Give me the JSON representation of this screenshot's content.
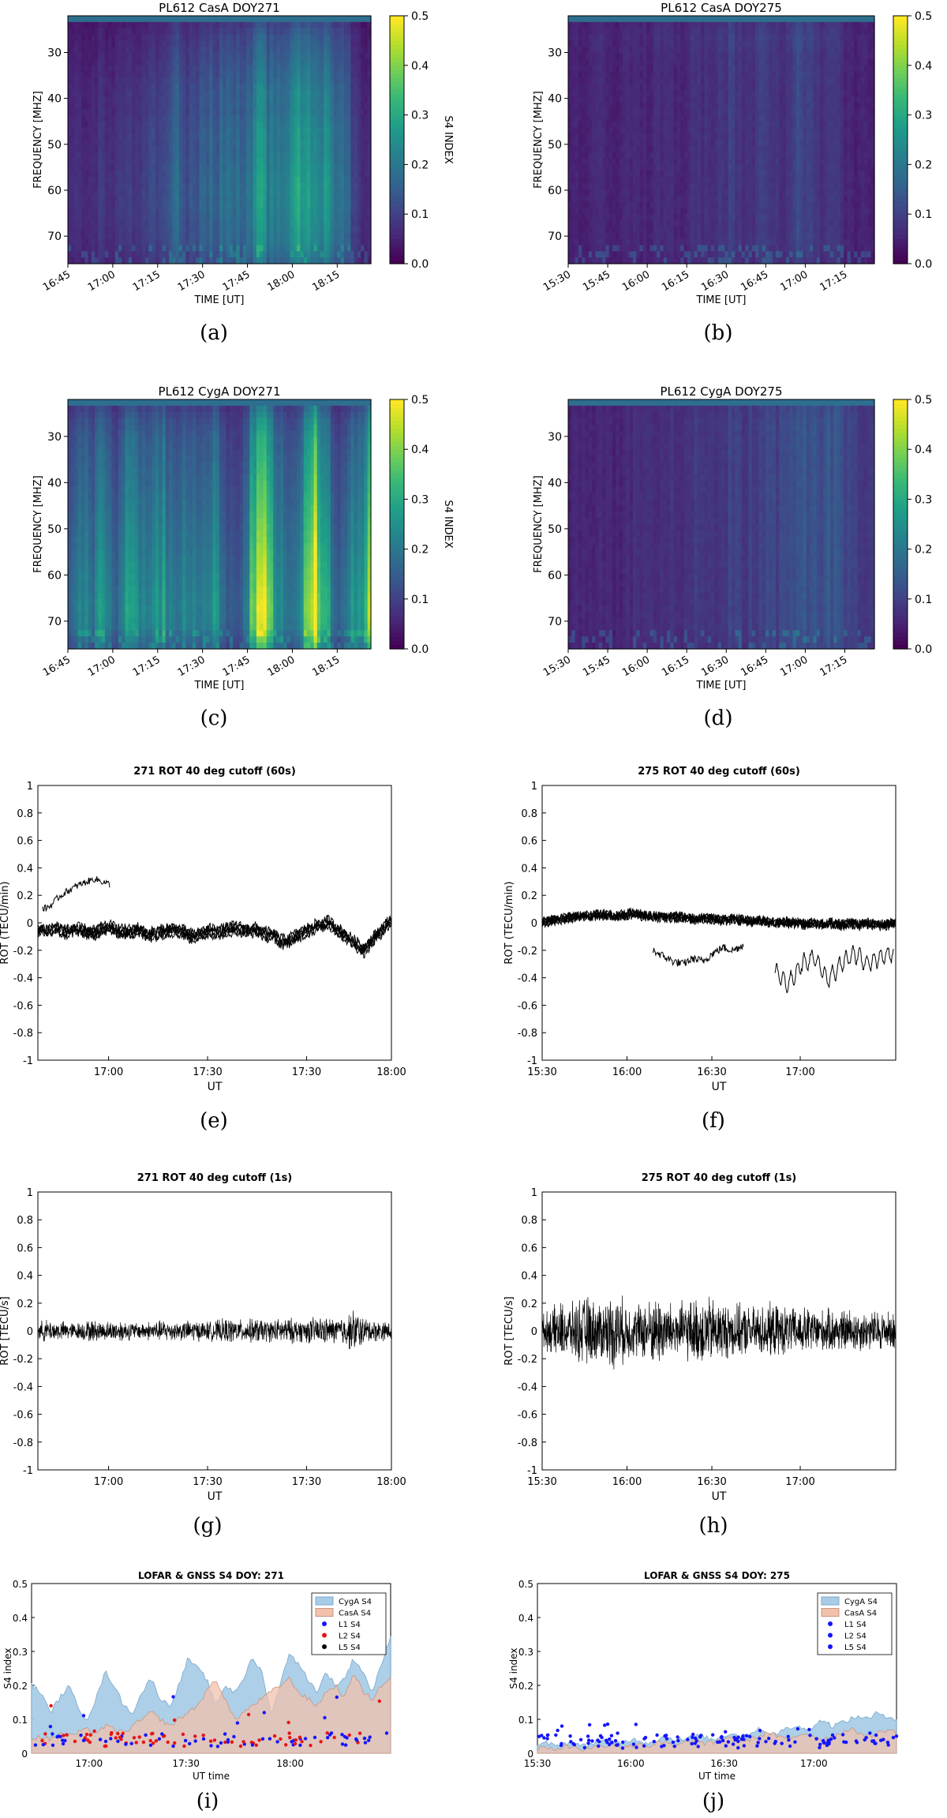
{
  "chart_data": [
    {
      "id": "a",
      "type": "heatmap",
      "title": "PL612 CasA DOY271",
      "xlabel": "TIME [UT]",
      "ylabel": "FREQUENCY [MHZ]",
      "colorbar_label": "S4 INDEX",
      "colorbar_ticks": [
        "0.0",
        "0.1",
        "0.2",
        "0.3",
        "0.4",
        "0.5"
      ],
      "x_ticks": [
        "16:45",
        "17:00",
        "17:15",
        "17:30",
        "17:45",
        "18:00",
        "18:15"
      ],
      "y_ticks": [
        "30",
        "40",
        "50",
        "60",
        "70"
      ],
      "ylim": [
        22,
        76
      ],
      "clim": [
        0,
        0.5
      ],
      "caption": "(a)",
      "time_profile": [
        0.05,
        0.06,
        0.05,
        0.06,
        0.07,
        0.05,
        0.06,
        0.07,
        0.08,
        0.06,
        0.09,
        0.1,
        0.08,
        0.12,
        0.14,
        0.1,
        0.11,
        0.13,
        0.15,
        0.12,
        0.16,
        0.18,
        0.14,
        0.13,
        0.2,
        0.22,
        0.18,
        0.16,
        0.2,
        0.24,
        0.27,
        0.22,
        0.2,
        0.23,
        0.19,
        0.17,
        0.15,
        0.08,
        0.06,
        0.05
      ],
      "freq_profile": [
        0.5,
        0.7,
        0.8,
        0.9,
        1.0,
        1.0,
        1.1,
        1.1,
        1.15,
        1.2,
        1.2,
        1.15,
        1.1,
        0.9
      ],
      "colormap": [
        "#440154",
        "#482878",
        "#3e4989",
        "#31688e",
        "#26828e",
        "#1f9e89",
        "#35b779",
        "#6ece58",
        "#b5de2b",
        "#fde725"
      ]
    },
    {
      "id": "b",
      "type": "heatmap",
      "title": "PL612 CasA DOY275",
      "xlabel": "TIME [UT]",
      "ylabel": "FREQUENCY [MHZ]",
      "colorbar_label": "S4 INDEX",
      "colorbar_ticks": [
        "0.0",
        "0.1",
        "0.2",
        "0.3",
        "0.4",
        "0.5"
      ],
      "x_ticks": [
        "15:30",
        "15:45",
        "16:00",
        "16:15",
        "16:30",
        "16:45",
        "17:00",
        "17:15"
      ],
      "y_ticks": [
        "30",
        "40",
        "50",
        "60",
        "70"
      ],
      "ylim": [
        22,
        76
      ],
      "clim": [
        0,
        0.5
      ],
      "caption": "(b)",
      "time_profile": [
        0.04,
        0.05,
        0.04,
        0.05,
        0.06,
        0.05,
        0.04,
        0.05,
        0.06,
        0.05,
        0.05,
        0.06,
        0.07,
        0.06,
        0.05,
        0.06,
        0.08,
        0.07,
        0.06,
        0.07,
        0.08,
        0.09,
        0.07,
        0.06,
        0.08,
        0.1,
        0.09,
        0.07,
        0.08,
        0.1,
        0.11,
        0.09,
        0.08,
        0.07,
        0.08,
        0.06,
        0.05,
        0.04,
        0.05,
        0.04
      ],
      "freq_profile": [
        0.9,
        1.1,
        1.0,
        1.0,
        1.0,
        1.0,
        1.0,
        1.0,
        1.0,
        1.0,
        1.0,
        1.0,
        1.0,
        0.9
      ],
      "colormap": [
        "#440154",
        "#482878",
        "#3e4989",
        "#31688e",
        "#26828e",
        "#1f9e89",
        "#35b779",
        "#6ece58",
        "#b5de2b",
        "#fde725"
      ]
    },
    {
      "id": "c",
      "type": "heatmap",
      "title": "PL612 CygA DOY271",
      "xlabel": "TIME [UT]",
      "ylabel": "FREQUENCY [MHZ]",
      "colorbar_label": "S4 INDEX",
      "colorbar_ticks": [
        "0.0",
        "0.1",
        "0.2",
        "0.3",
        "0.4",
        "0.5"
      ],
      "x_ticks": [
        "16:45",
        "17:00",
        "17:15",
        "17:30",
        "17:45",
        "18:00",
        "18:15"
      ],
      "y_ticks": [
        "30",
        "40",
        "50",
        "60",
        "70"
      ],
      "ylim": [
        22,
        76
      ],
      "clim": [
        0,
        0.5
      ],
      "caption": "(c)",
      "time_profile": [
        0.12,
        0.18,
        0.2,
        0.15,
        0.22,
        0.19,
        0.14,
        0.2,
        0.24,
        0.18,
        0.16,
        0.21,
        0.23,
        0.17,
        0.15,
        0.2,
        0.18,
        0.14,
        0.19,
        0.22,
        0.15,
        0.12,
        0.1,
        0.16,
        0.35,
        0.42,
        0.3,
        0.2,
        0.18,
        0.14,
        0.22,
        0.32,
        0.4,
        0.3,
        0.18,
        0.12,
        0.16,
        0.22,
        0.2,
        0.38
      ],
      "freq_profile": [
        0.5,
        0.7,
        0.8,
        0.85,
        0.9,
        0.95,
        1.0,
        1.05,
        1.1,
        1.15,
        1.2,
        1.25,
        1.2,
        0.9
      ],
      "colormap": [
        "#440154",
        "#482878",
        "#3e4989",
        "#31688e",
        "#26828e",
        "#1f9e89",
        "#35b779",
        "#6ece58",
        "#b5de2b",
        "#fde725"
      ]
    },
    {
      "id": "d",
      "type": "heatmap",
      "title": "PL612 CygA DOY275",
      "xlabel": "TIME [UT]",
      "ylabel": "FREQUENCY [MHZ]",
      "colorbar_label": "S4 INDEX",
      "colorbar_ticks": [
        "0.0",
        "0.1",
        "0.2",
        "0.3",
        "0.4",
        "0.5"
      ],
      "x_ticks": [
        "15:30",
        "15:45",
        "16:00",
        "16:15",
        "16:30",
        "16:45",
        "17:00",
        "17:15"
      ],
      "y_ticks": [
        "30",
        "40",
        "50",
        "60",
        "70"
      ],
      "ylim": [
        22,
        76
      ],
      "clim": [
        0,
        0.5
      ],
      "caption": "(d)",
      "time_profile": [
        0.05,
        0.05,
        0.06,
        0.05,
        0.06,
        0.05,
        0.05,
        0.06,
        0.06,
        0.07,
        0.06,
        0.06,
        0.07,
        0.08,
        0.07,
        0.07,
        0.08,
        0.09,
        0.08,
        0.08,
        0.09,
        0.1,
        0.09,
        0.09,
        0.1,
        0.11,
        0.1,
        0.1,
        0.11,
        0.12,
        0.13,
        0.12,
        0.12,
        0.13,
        0.14,
        0.12,
        0.1,
        0.09,
        0.08,
        0.08
      ],
      "freq_profile": [
        0.9,
        1.0,
        1.0,
        1.0,
        1.0,
        1.0,
        1.0,
        1.0,
        1.0,
        1.0,
        1.0,
        1.0,
        1.0,
        0.9
      ],
      "colormap": [
        "#440154",
        "#482878",
        "#3e4989",
        "#31688e",
        "#26828e",
        "#1f9e89",
        "#35b779",
        "#6ece58",
        "#b5de2b",
        "#fde725"
      ]
    },
    {
      "id": "e",
      "type": "line",
      "title": "271 ROT 40 deg cutoff (60s)",
      "xlabel": "UT",
      "ylabel": "ROT (TECU/min)",
      "x_ticks": [
        "17:00",
        "17:30",
        "17:30",
        "18:00"
      ],
      "y_ticks": [
        "1",
        "0.8",
        "0.6",
        "0.4",
        "0.2",
        "0",
        "-0.2",
        "-0.4",
        "-0.6",
        "-0.8",
        "-1"
      ],
      "ylim": [
        -1,
        1
      ],
      "caption": "(e)",
      "series_profile": [
        -0.05,
        -0.06,
        -0.04,
        -0.07,
        -0.05,
        -0.06,
        -0.08,
        -0.05,
        -0.04,
        -0.06,
        -0.07,
        -0.05,
        -0.09,
        -0.08,
        -0.06,
        -0.05,
        -0.07,
        -0.1,
        -0.08,
        -0.06,
        -0.07,
        -0.05,
        -0.04,
        -0.06,
        -0.05,
        -0.08,
        -0.1,
        -0.14,
        -0.12,
        -0.08,
        -0.05,
        -0.02,
        0.0,
        -0.05,
        -0.1,
        -0.15,
        -0.2,
        -0.12,
        -0.05,
        0.02
      ],
      "upper_profile": [
        0.1,
        0.12,
        0.18,
        0.22,
        0.25,
        0.28,
        0.3,
        0.32,
        0.3,
        0.28
      ],
      "line_color": "#000000"
    },
    {
      "id": "f",
      "type": "line",
      "title": "275 ROT 40 deg cutoff (60s)",
      "xlabel": "UT",
      "ylabel": "ROT (TECU/min)",
      "x_ticks": [
        "15:30",
        "16:00",
        "16:30",
        "17:00"
      ],
      "y_ticks": [
        "1",
        "0.8",
        "0.6",
        "0.4",
        "0.2",
        "0",
        "-0.2",
        "-0.4",
        "-0.6",
        "-0.8",
        "-1"
      ],
      "ylim": [
        -1,
        1
      ],
      "caption": "(f)",
      "series_profile": [
        -0.01,
        0.0,
        0.01,
        0.02,
        0.03,
        0.03,
        0.04,
        0.04,
        0.03,
        0.04,
        0.05,
        0.04,
        0.03,
        0.03,
        0.02,
        0.03,
        0.02,
        0.01,
        0.02,
        0.01,
        0.0,
        0.01,
        0.0,
        -0.01,
        0.0,
        -0.01,
        -0.02,
        -0.01,
        -0.02,
        -0.03,
        -0.02,
        -0.03,
        -0.02,
        -0.03,
        -0.02,
        -0.03,
        -0.02,
        -0.03,
        -0.03,
        -0.02
      ],
      "lower_profile": [
        -0.2,
        -0.24,
        -0.28,
        -0.3,
        -0.26,
        -0.28,
        -0.22,
        -0.18,
        -0.2,
        -0.16
      ],
      "lower2_profile": [
        -0.35,
        -0.45,
        -0.3,
        -0.25,
        -0.42,
        -0.3,
        -0.22,
        -0.3,
        -0.25,
        -0.22
      ],
      "line_color": "#000000"
    },
    {
      "id": "g",
      "type": "line",
      "title": "271 ROT 40 deg cutoff (1s)",
      "xlabel": "UT",
      "ylabel": "ROT [TECU/s]",
      "x_ticks": [
        "17:00",
        "17:30",
        "17:30",
        "18:00"
      ],
      "y_ticks": [
        "1",
        "0.8",
        "0.6",
        "0.4",
        "0.2",
        "0",
        "-0.2",
        "-0.4",
        "-0.6",
        "-0.8",
        "-1"
      ],
      "ylim": [
        -1,
        1
      ],
      "caption": "(g)",
      "amplitude_profile": [
        0.06,
        0.07,
        0.06,
        0.06,
        0.05,
        0.06,
        0.07,
        0.06,
        0.06,
        0.07,
        0.06,
        0.05,
        0.06,
        0.06,
        0.07,
        0.06,
        0.06,
        0.07,
        0.06,
        0.06,
        0.07,
        0.08,
        0.07,
        0.07,
        0.08,
        0.07,
        0.07,
        0.08,
        0.08,
        0.07,
        0.08,
        0.09,
        0.08,
        0.08,
        0.1,
        0.14,
        0.08,
        0.07,
        0.06,
        0.06
      ],
      "line_color": "#000000"
    },
    {
      "id": "h",
      "type": "line",
      "title": "275 ROT 40 deg cutoff (1s)",
      "xlabel": "UT",
      "ylabel": "ROT [TECU/s]",
      "x_ticks": [
        "15:30",
        "16:00",
        "16:30",
        "17:00"
      ],
      "y_ticks": [
        "1",
        "0.8",
        "0.6",
        "0.4",
        "0.2",
        "0",
        "-0.2",
        "-0.4",
        "-0.6",
        "-0.8",
        "-1"
      ],
      "ylim": [
        -1,
        1
      ],
      "caption": "(h)",
      "amplitude_profile": [
        0.1,
        0.14,
        0.18,
        0.16,
        0.2,
        0.22,
        0.18,
        0.2,
        0.24,
        0.2,
        0.16,
        0.18,
        0.2,
        0.22,
        0.18,
        0.17,
        0.19,
        0.2,
        0.22,
        0.2,
        0.18,
        0.17,
        0.16,
        0.15,
        0.16,
        0.17,
        0.16,
        0.15,
        0.14,
        0.15,
        0.14,
        0.13,
        0.14,
        0.13,
        0.14,
        0.13,
        0.12,
        0.13,
        0.12,
        0.12
      ],
      "line_color": "#000000"
    },
    {
      "id": "i",
      "type": "area",
      "title": "LOFAR & GNSS S4 DOY: 271",
      "xlabel": "UT time",
      "ylabel": "S4 index",
      "x_ticks": [
        "17:00",
        "17:30",
        "18:00"
      ],
      "y_ticks": [
        "0.5",
        "0.4",
        "0.3",
        "0.2",
        "0.1",
        "0"
      ],
      "ylim": [
        0,
        0.5
      ],
      "caption": "(i)",
      "legend": [
        "CygA S4",
        "CasA S4",
        "L1 S4",
        "L2 S4",
        "L5 S4"
      ],
      "legend_colors": [
        "#a9cce6",
        "#f2c1ad",
        "#1414ff",
        "#e81414",
        "#000000"
      ],
      "series": [
        {
          "name": "CygA S4",
          "values": [
            0.2,
            0.18,
            0.12,
            0.16,
            0.2,
            0.14,
            0.1,
            0.16,
            0.24,
            0.2,
            0.14,
            0.12,
            0.18,
            0.22,
            0.16,
            0.14,
            0.2,
            0.28,
            0.25,
            0.22,
            0.14,
            0.2,
            0.18,
            0.22,
            0.28,
            0.24,
            0.12,
            0.2,
            0.3,
            0.26,
            0.22,
            0.18,
            0.24,
            0.2,
            0.22,
            0.28,
            0.24,
            0.18,
            0.26,
            0.35
          ]
        },
        {
          "name": "CasA S4",
          "values": [
            0.04,
            0.05,
            0.04,
            0.06,
            0.05,
            0.06,
            0.07,
            0.06,
            0.08,
            0.07,
            0.06,
            0.08,
            0.1,
            0.12,
            0.1,
            0.08,
            0.1,
            0.12,
            0.14,
            0.18,
            0.22,
            0.16,
            0.1,
            0.12,
            0.14,
            0.16,
            0.18,
            0.2,
            0.22,
            0.18,
            0.16,
            0.14,
            0.18,
            0.2,
            0.16,
            0.24,
            0.18,
            0.16,
            0.2,
            0.22
          ]
        }
      ]
    },
    {
      "id": "j",
      "type": "area",
      "title": "LOFAR & GNSS S4 DOY: 275",
      "xlabel": "UT time",
      "ylabel": "S4 index",
      "x_ticks": [
        "15:30",
        "16:00",
        "16:30",
        "17:00"
      ],
      "y_ticks": [
        "0.5",
        "0.4",
        "0.3",
        "0.2",
        "0.1",
        "0"
      ],
      "ylim": [
        0,
        0.5
      ],
      "caption": "(j)",
      "legend": [
        "CygA S4",
        "CasA S4",
        "L1 S4",
        "L2 S4",
        "L5 S4"
      ],
      "legend_colors": [
        "#a9cce6",
        "#f2c1ad",
        "#1414ff",
        "#1414ff",
        "#1414ff"
      ],
      "series": [
        {
          "name": "CygA S4",
          "values": [
            0.02,
            0.03,
            0.02,
            0.03,
            0.03,
            0.02,
            0.03,
            0.04,
            0.03,
            0.03,
            0.04,
            0.04,
            0.03,
            0.04,
            0.05,
            0.04,
            0.04,
            0.05,
            0.05,
            0.04,
            0.05,
            0.06,
            0.05,
            0.06,
            0.07,
            0.06,
            0.06,
            0.07,
            0.08,
            0.07,
            0.08,
            0.1,
            0.08,
            0.09,
            0.1,
            0.11,
            0.1,
            0.12,
            0.11,
            0.1
          ]
        },
        {
          "name": "CasA S4",
          "values": [
            0.01,
            0.02,
            0.01,
            0.02,
            0.02,
            0.01,
            0.02,
            0.02,
            0.03,
            0.02,
            0.02,
            0.03,
            0.02,
            0.03,
            0.03,
            0.02,
            0.03,
            0.04,
            0.03,
            0.03,
            0.04,
            0.05,
            0.04,
            0.04,
            0.05,
            0.06,
            0.05,
            0.04,
            0.05,
            0.06,
            0.05,
            0.04,
            0.05,
            0.06,
            0.07,
            0.06,
            0.05,
            0.06,
            0.07,
            0.06
          ]
        }
      ]
    }
  ]
}
